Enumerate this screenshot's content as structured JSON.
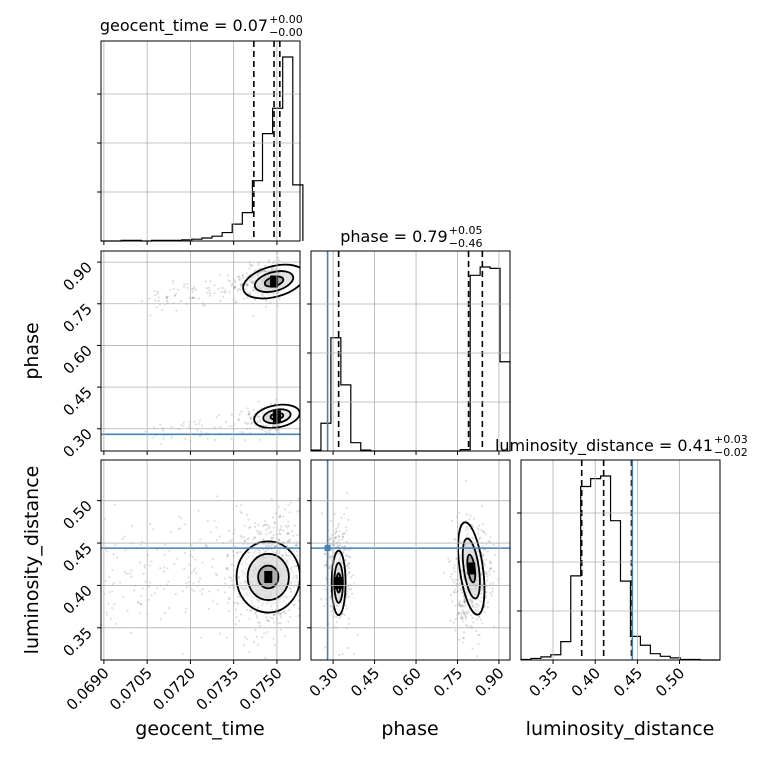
{
  "chart_data": {
    "type": "corner",
    "parameters": [
      "geocent_time",
      "phase",
      "luminosity_distance"
    ],
    "axis_labels": {
      "geocent_time": "geocent_time",
      "phase": "phase",
      "luminosity_distance": "luminosity_distance"
    },
    "titles": {
      "geocent_time": {
        "name": "geocent_time",
        "value": "0.07",
        "plus": "+0.00",
        "minus": "−0.00"
      },
      "phase": {
        "name": "phase",
        "value": "0.79",
        "plus": "+0.05",
        "minus": "−0.46"
      },
      "luminosity_distance": {
        "name": "luminosity_distance",
        "value": "0.41",
        "plus": "+0.03",
        "minus": "−0.02"
      }
    },
    "ranges": {
      "geocent_time": [
        0.0689,
        0.0758
      ],
      "phase": [
        0.22,
        0.94
      ],
      "luminosity_distance": [
        0.312,
        0.548
      ]
    },
    "ticks": {
      "geocent_time": [
        "0.0690",
        "0.0705",
        "0.0720",
        "0.0735",
        "0.0750"
      ],
      "phase": [
        "0.30",
        "0.45",
        "0.60",
        "0.75",
        "0.90"
      ],
      "luminosity_distance": [
        "0.35",
        "0.40",
        "0.45",
        "0.50"
      ]
    },
    "injection": {
      "phase": 0.28,
      "luminosity_distance": 0.444
    },
    "quantile_lines": {
      "geocent_time": [
        0.0742,
        0.0749,
        0.0751
      ],
      "phase": [
        0.32,
        0.79,
        0.84
      ],
      "luminosity_distance": [
        0.384,
        0.41,
        0.443
      ]
    },
    "histograms": {
      "geocent_time": {
        "edges_start": 0.0689,
        "bin_width": 0.00035,
        "counts": [
          0,
          0,
          1,
          1,
          0,
          1,
          1,
          1,
          2,
          3,
          5,
          8,
          14,
          28,
          47,
          100,
          178,
          220,
          305,
          93
        ]
      },
      "phase": {
        "edges_start": 0.22,
        "bin_width": 0.036,
        "counts": [
          2,
          60,
          245,
          143,
          18,
          2,
          0,
          0,
          0,
          0,
          0,
          0,
          0,
          0,
          0,
          3,
          380,
          398,
          395,
          193
        ]
      },
      "luminosity_distance": {
        "edges_start": 0.312,
        "bin_width": 0.0118,
        "counts": [
          1,
          3,
          6,
          10,
          35,
          160,
          330,
          345,
          350,
          265,
          150,
          45,
          28,
          12,
          7,
          4,
          1,
          1,
          0,
          0
        ]
      }
    },
    "grid": true
  }
}
